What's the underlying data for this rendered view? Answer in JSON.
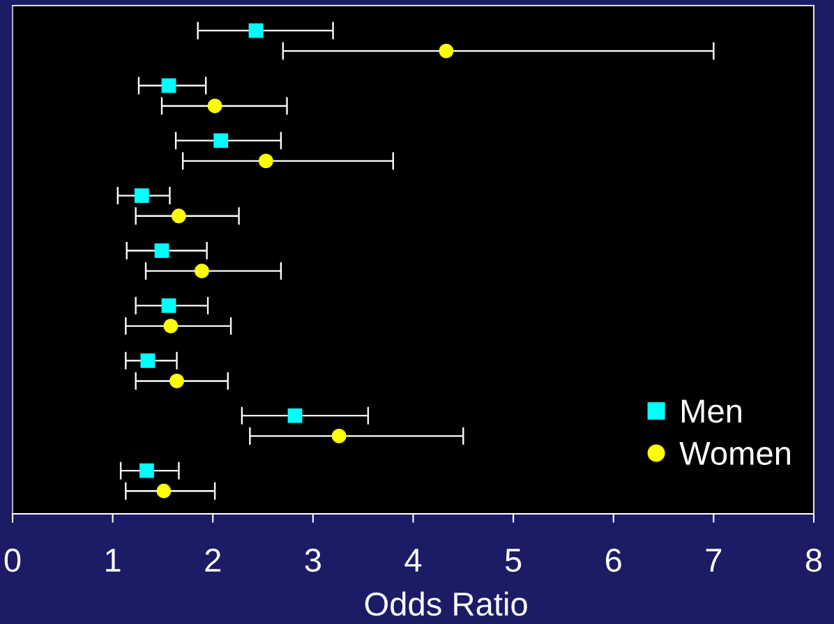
{
  "chart_data": {
    "type": "scatter",
    "orientation": "horizontal",
    "categories": [
      null,
      null,
      null,
      null,
      null,
      null,
      null,
      null,
      null
    ],
    "series": [
      {
        "name": "Men",
        "color": "#00ffff",
        "marker": "square",
        "values": [
          2.43,
          1.56,
          2.08,
          1.29,
          1.49,
          1.56,
          1.35,
          2.82,
          1.34
        ],
        "errors": [
          [
            1.85,
            3.2
          ],
          [
            1.26,
            1.93
          ],
          [
            1.63,
            2.68
          ],
          [
            1.05,
            1.57
          ],
          [
            1.14,
            1.94
          ],
          [
            1.23,
            1.95
          ],
          [
            1.13,
            1.64
          ],
          [
            2.29,
            3.55
          ],
          [
            1.08,
            1.66
          ]
        ]
      },
      {
        "name": "Women",
        "color": "#ffff00",
        "marker": "circle",
        "values": [
          4.33,
          2.02,
          2.53,
          1.66,
          1.89,
          1.58,
          1.64,
          3.26,
          1.51
        ],
        "errors": [
          [
            2.7,
            7.0
          ],
          [
            1.49,
            2.74
          ],
          [
            1.7,
            3.8
          ],
          [
            1.23,
            2.26
          ],
          [
            1.33,
            2.68
          ],
          [
            1.13,
            2.18
          ],
          [
            1.23,
            2.15
          ],
          [
            2.37,
            4.5
          ],
          [
            1.13,
            2.02
          ]
        ]
      }
    ],
    "xlabel": "Odds Ratio",
    "xlim": [
      0,
      8
    ],
    "xticks": [
      0,
      1,
      2,
      3,
      4,
      5,
      6,
      7,
      8
    ],
    "legend": "bottom right",
    "tick_labels": "x"
  }
}
